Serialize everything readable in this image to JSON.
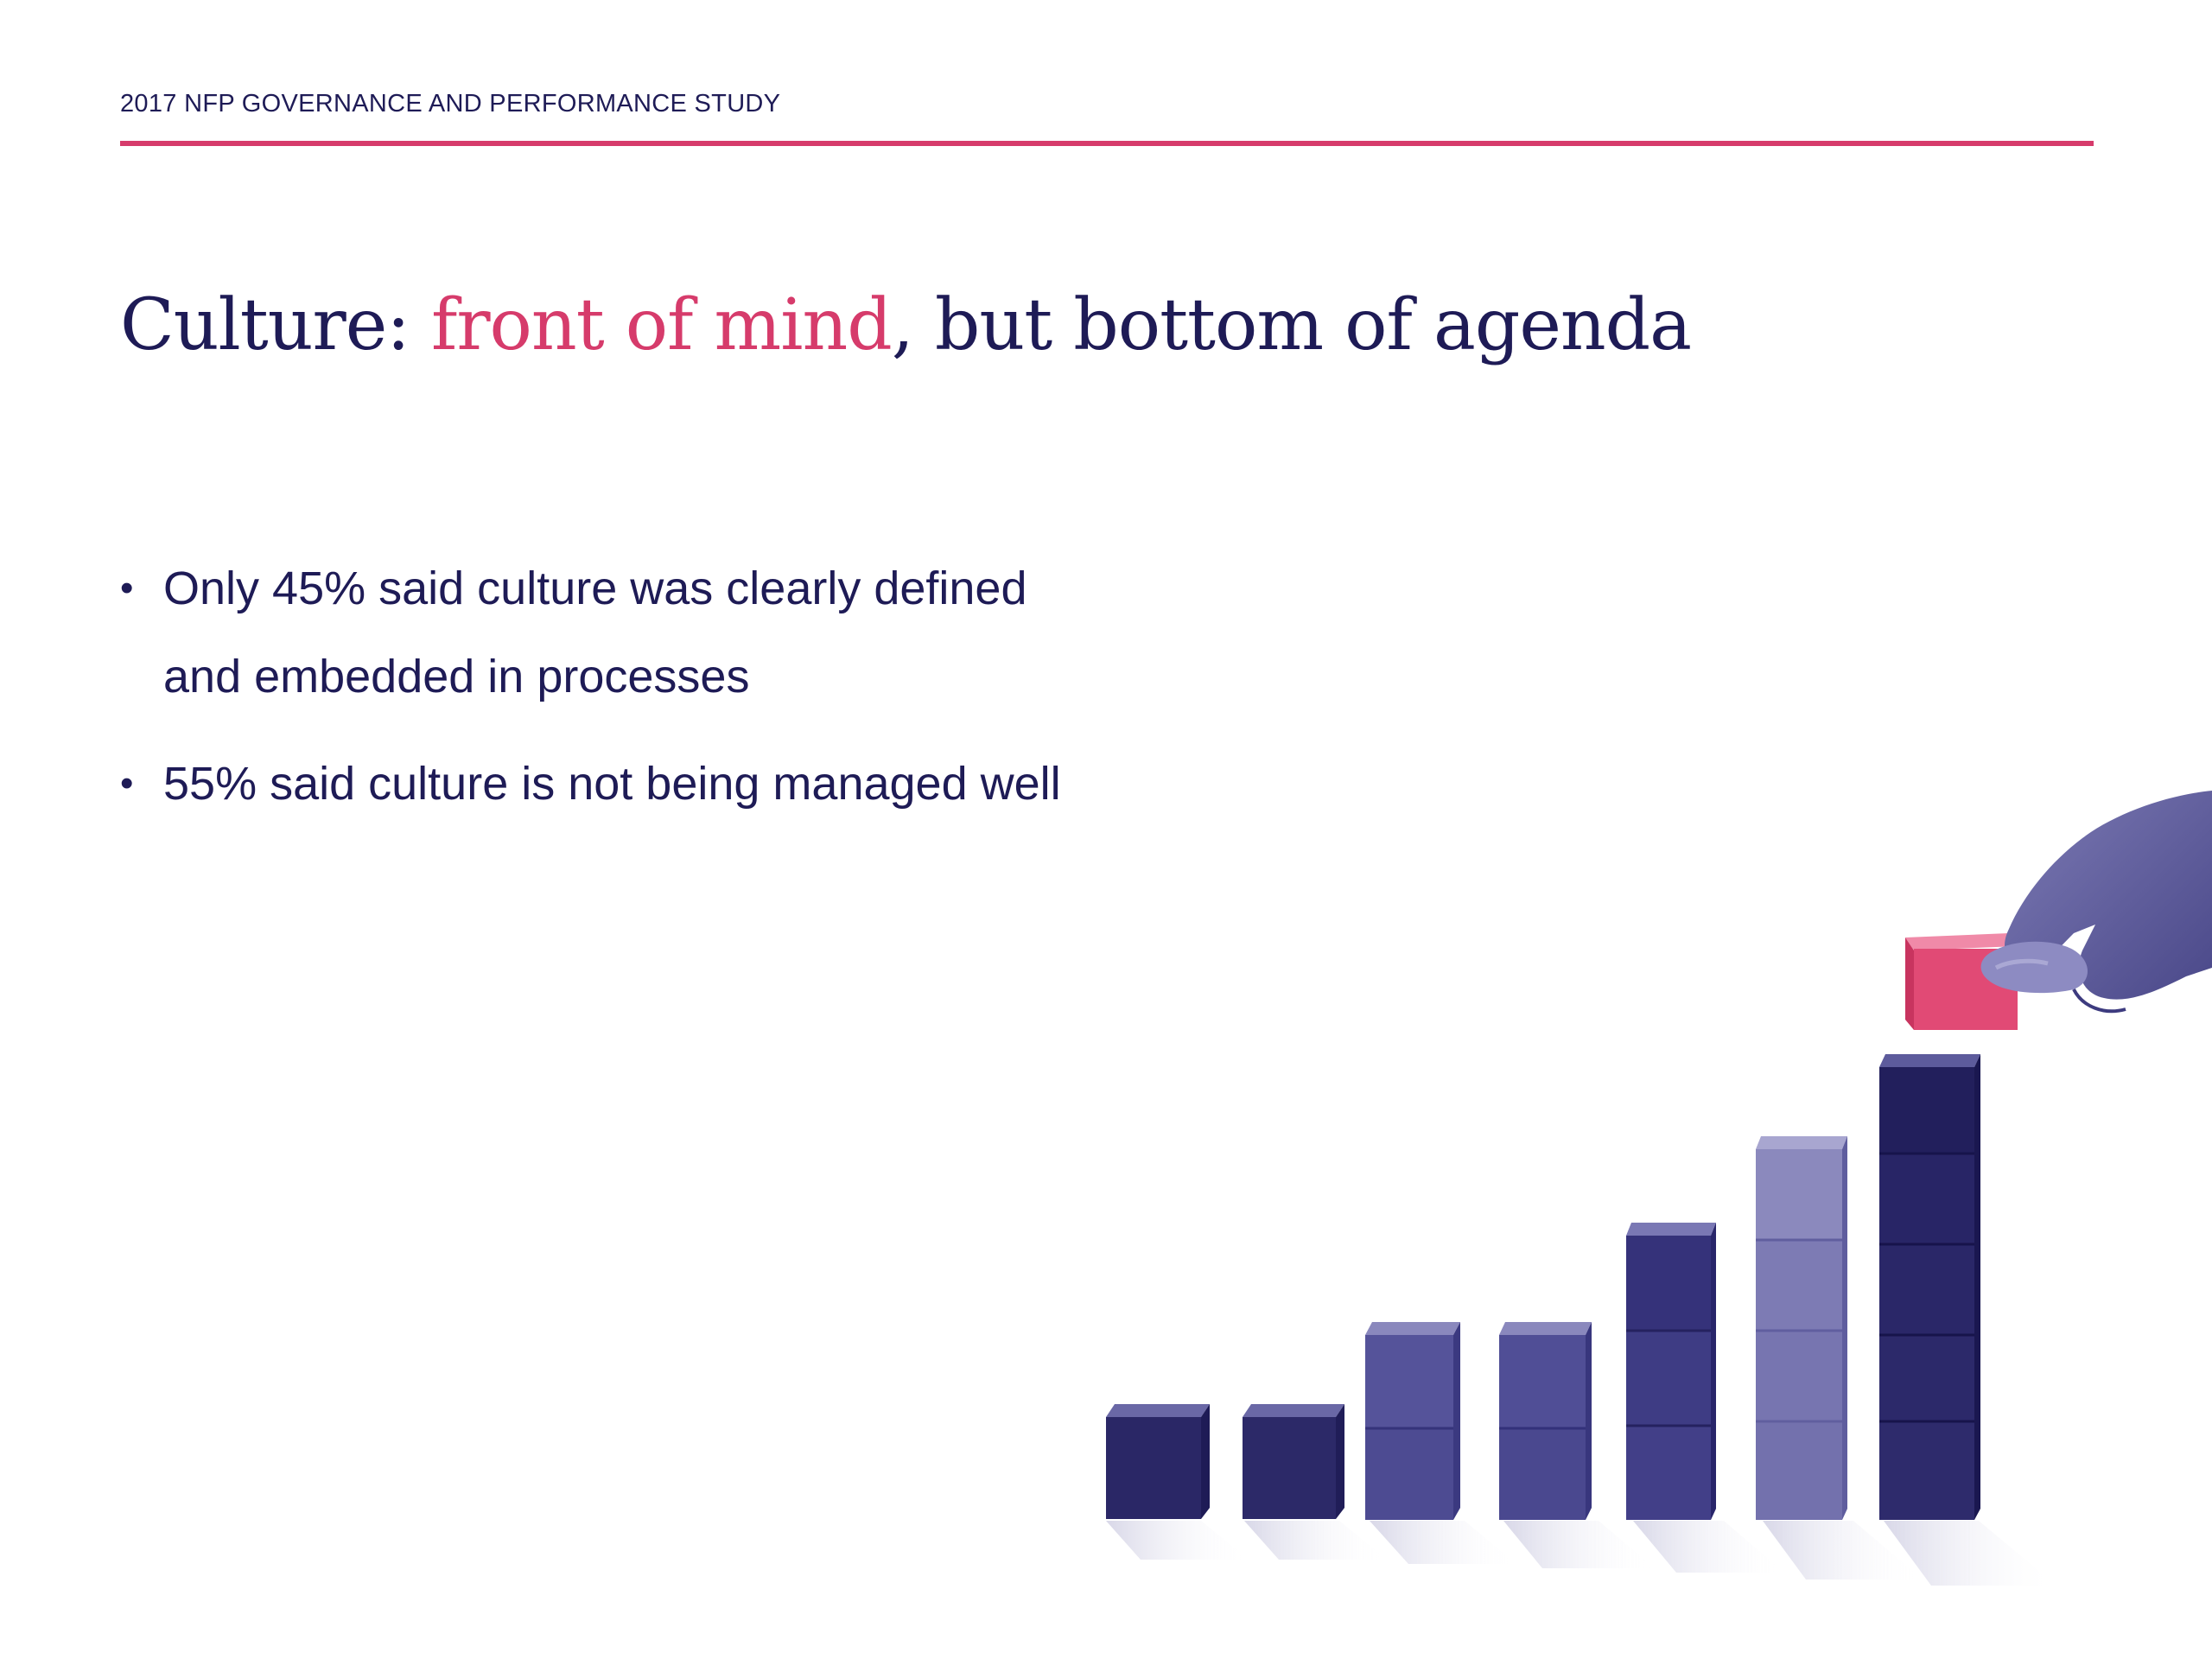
{
  "header": {
    "label": "2017 NFP GOVERNANCE AND PERFORMANCE STUDY"
  },
  "title": {
    "prefix": "Culture: ",
    "highlight": "front of mind",
    "suffix": ", but bottom of agenda"
  },
  "bullets": [
    "Only 45% said culture was clearly defined and embedded in processes",
    "55% said culture is not being managed well"
  ],
  "colors": {
    "navy": "#1e1b56",
    "accent": "#d63b6b",
    "block_mid": "#5c5a9c",
    "block_light": "#8583b8"
  },
  "illustration": {
    "description_icon": "stacked-blocks-growth-icon",
    "block_stacks": [
      1,
      1,
      2,
      2,
      3,
      4,
      5
    ]
  }
}
